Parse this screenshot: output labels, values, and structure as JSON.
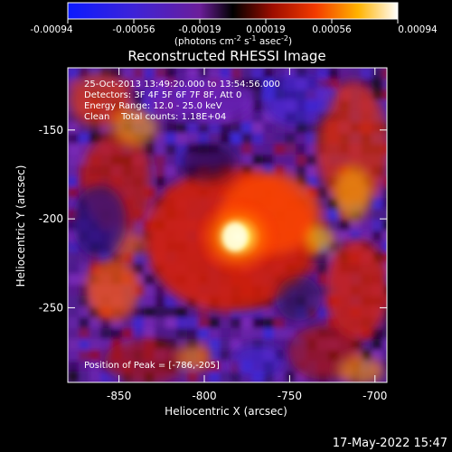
{
  "figure": {
    "title": "Reconstructed RHESSI Image",
    "footer_datetime": "17-May-2022 15:47"
  },
  "colorbar": {
    "tick_labels": [
      "-0.00094",
      "-0.00056",
      "-0.00019",
      "0.00019",
      "0.00056",
      "0.00094"
    ],
    "unit_prefix": "(photons cm",
    "unit_sup1": "-2",
    "unit_mid1": " s",
    "unit_sup2": "-1",
    "unit_mid2": " asec",
    "unit_sup3": "-2",
    "unit_suffix": ")"
  },
  "image_info": {
    "time_range": "25-Oct-2013 13:49:20.000 to 13:54:56.000",
    "detectors": "Detectors: 3F 4F 5F 6F 7F 8F, Att 0",
    "energy_range": "Energy Range: 12.0 - 25.0 keV",
    "clean_line": "Clean    Total counts: 1.18E+04",
    "peak_position": "Position of Peak = [-786,-205]"
  },
  "axes": {
    "xlabel": "Heliocentric X (arcsec)",
    "ylabel": "Heliocentric Y (arcsec)",
    "xticks": [
      {
        "value": -850,
        "label": "-850"
      },
      {
        "value": -800,
        "label": "-800"
      },
      {
        "value": -750,
        "label": "-750"
      },
      {
        "value": -700,
        "label": "-700"
      }
    ],
    "yticks": [
      {
        "value": -150,
        "label": "-150"
      },
      {
        "value": -200,
        "label": "-200"
      },
      {
        "value": -250,
        "label": "-250"
      }
    ],
    "xlim": [
      -880,
      -693
    ],
    "ylim": [
      -292,
      -115
    ]
  }
}
